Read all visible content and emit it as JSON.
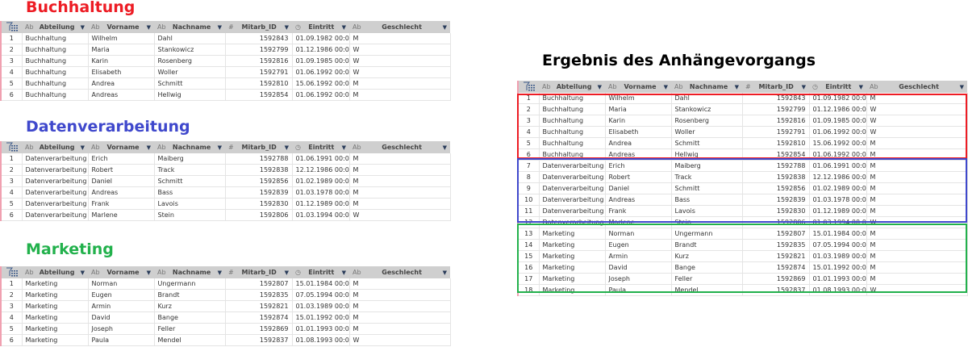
{
  "columns": [
    {
      "type": "",
      "label": ""
    },
    {
      "type": "Ab",
      "label": "Abteilung"
    },
    {
      "type": "Ab",
      "label": "Vorname"
    },
    {
      "type": "Ab",
      "label": "Nachname"
    },
    {
      "type": "#",
      "label": "Mitarb_ID"
    },
    {
      "type": "clock",
      "label": "Eintritt"
    },
    {
      "type": "Ab",
      "label": "Geschlecht"
    }
  ],
  "colors": {
    "buchhaltung": "#ed1c24",
    "datenverarbeitung": "#3f48cc",
    "marketing": "#22b14c",
    "header_bg": "#cfcfcf"
  },
  "tables": [
    {
      "title": "Buchhaltung",
      "color": "#ed1c24",
      "rows": [
        [
          "1",
          "Buchhaltung",
          "Wilhelm",
          "Dahl",
          "1592843",
          "01.09.1982 00:00:00",
          "M"
        ],
        [
          "2",
          "Buchhaltung",
          "Maria",
          "Stankowicz",
          "1592799",
          "01.12.1986 00:00:00",
          "W"
        ],
        [
          "3",
          "Buchhaltung",
          "Karin",
          "Rosenberg",
          "1592816",
          "01.09.1985 00:00:00",
          "W"
        ],
        [
          "4",
          "Buchhaltung",
          "Elisabeth",
          "Woller",
          "1592791",
          "01.06.1992 00:00:00",
          "W"
        ],
        [
          "5",
          "Buchhaltung",
          "Andrea",
          "Schmitt",
          "1592810",
          "15.06.1992 00:00:00",
          "M"
        ],
        [
          "6",
          "Buchhaltung",
          "Andreas",
          "Hellwig",
          "1592854",
          "01.06.1992 00:00:00",
          "M"
        ]
      ]
    },
    {
      "title": "Datenverarbeitung",
      "color": "#3f48cc",
      "rows": [
        [
          "1",
          "Datenverarbeitung",
          "Erich",
          "Maiberg",
          "1592788",
          "01.06.1991 00:00:00",
          "M"
        ],
        [
          "2",
          "Datenverarbeitung",
          "Robert",
          "Track",
          "1592838",
          "12.12.1986 00:00:00",
          "M"
        ],
        [
          "3",
          "Datenverarbeitung",
          "Daniel",
          "Schmitt",
          "1592856",
          "01.02.1989 00:00:00",
          "M"
        ],
        [
          "4",
          "Datenverarbeitung",
          "Andreas",
          "Bass",
          "1592839",
          "01.03.1978 00:00:00",
          "M"
        ],
        [
          "5",
          "Datenverarbeitung",
          "Frank",
          "Lavois",
          "1592830",
          "01.12.1989 00:00:00",
          "M"
        ],
        [
          "6",
          "Datenverarbeitung",
          "Marlene",
          "Stein",
          "1592806",
          "01.03.1994 00:00:00",
          "W"
        ]
      ]
    },
    {
      "title": "Marketing",
      "color": "#22b14c",
      "rows": [
        [
          "1",
          "Marketing",
          "Norman",
          "Ungermann",
          "1592807",
          "15.01.1984 00:00:00",
          "M"
        ],
        [
          "2",
          "Marketing",
          "Eugen",
          "Brandt",
          "1592835",
          "07.05.1994 00:00:00",
          "M"
        ],
        [
          "3",
          "Marketing",
          "Armin",
          "Kurz",
          "1592821",
          "01.03.1989 00:00:00",
          "M"
        ],
        [
          "4",
          "Marketing",
          "David",
          "Bange",
          "1592874",
          "15.01.1992 00:00:00",
          "M"
        ],
        [
          "5",
          "Marketing",
          "Joseph",
          "Feller",
          "1592869",
          "01.01.1993 00:00:00",
          "M"
        ],
        [
          "6",
          "Marketing",
          "Paula",
          "Mendel",
          "1592837",
          "01.08.1993 00:00:00",
          "W"
        ]
      ]
    }
  ],
  "result": {
    "title": "Ergebnis des Anhängevorgangs",
    "color": "#000000"
  }
}
